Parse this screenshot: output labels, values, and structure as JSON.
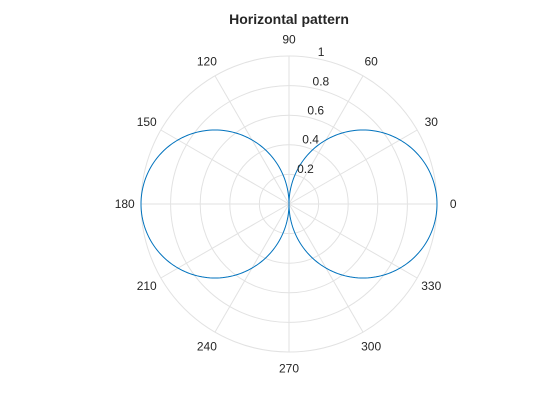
{
  "chart_data": {
    "type": "line",
    "subtype": "polar",
    "title": "Horizontal pattern",
    "r_ticks": [
      0.2,
      0.4,
      0.6,
      0.8,
      1
    ],
    "r_tick_labels": [
      "0.2",
      "0.4",
      "0.6",
      "0.8",
      "1"
    ],
    "r_lim": [
      0,
      1
    ],
    "theta_ticks": [
      0,
      30,
      60,
      90,
      120,
      150,
      180,
      210,
      240,
      270,
      300,
      330
    ],
    "theta_tick_labels": [
      "0",
      "30",
      "60",
      "90",
      "120",
      "150",
      "180",
      "210",
      "240",
      "270",
      "300",
      "330"
    ],
    "theta_unit": "degrees",
    "grid": true,
    "series": [
      {
        "color": "#0072bd",
        "function": "r = |cos(theta)|",
        "theta_deg": [
          0,
          10,
          20,
          30,
          40,
          50,
          60,
          70,
          80,
          90,
          100,
          110,
          120,
          130,
          140,
          150,
          160,
          170,
          180,
          190,
          200,
          210,
          220,
          230,
          240,
          250,
          260,
          270,
          280,
          290,
          300,
          310,
          320,
          330,
          340,
          350,
          360
        ],
        "r": [
          1,
          0.985,
          0.94,
          0.866,
          0.766,
          0.643,
          0.5,
          0.342,
          0.174,
          0,
          0.174,
          0.342,
          0.5,
          0.643,
          0.766,
          0.866,
          0.94,
          0.985,
          1,
          0.985,
          0.94,
          0.866,
          0.766,
          0.643,
          0.5,
          0.342,
          0.174,
          0,
          0.174,
          0.342,
          0.5,
          0.643,
          0.766,
          0.866,
          0.94,
          0.985,
          1
        ]
      }
    ]
  },
  "colors": {
    "grid": "#e2e2e2",
    "text": "#262626",
    "series": "#0072bd"
  }
}
